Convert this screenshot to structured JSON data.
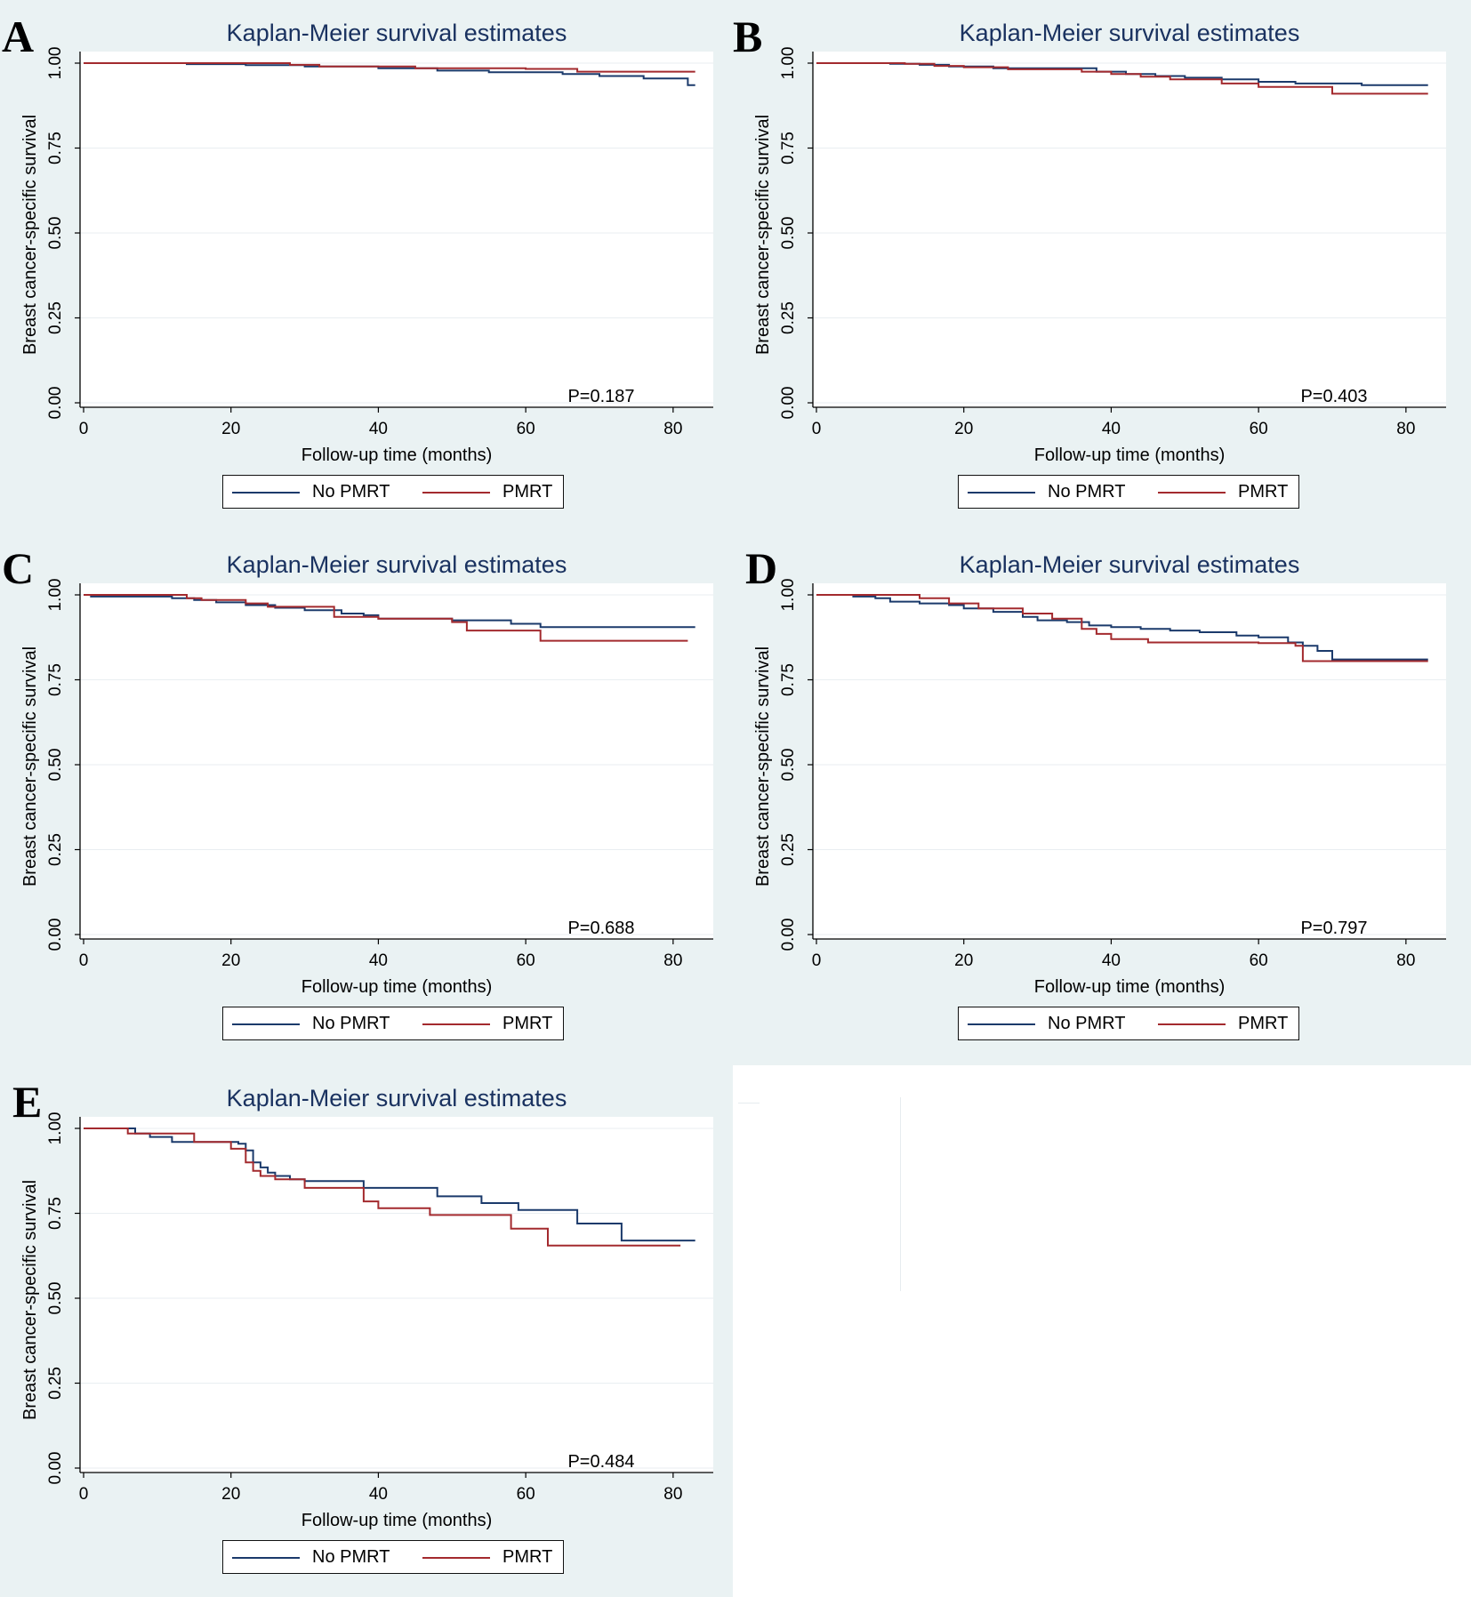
{
  "legend": {
    "series1": "No PMRT",
    "series2": "PMRT"
  },
  "colors": {
    "series1": "#1b3a6b",
    "series2": "#a32a2e",
    "grid": "#ffffff",
    "axis": "#000000"
  },
  "chart_data": [
    {
      "panel": "A",
      "type": "line",
      "title": "Kaplan-Meier survival estimates",
      "xlabel": "Follow-up time (months)",
      "ylabel": "Breast cancer-specific survival",
      "xlim": [
        0,
        84
      ],
      "ylim": [
        0,
        1
      ],
      "xticks": [
        "0",
        "20",
        "40",
        "60",
        "80"
      ],
      "yticks": [
        "0.00",
        "0.25",
        "0.50",
        "0.75",
        "1.00"
      ],
      "annotation": "P=0.187",
      "series": [
        {
          "name": "No PMRT",
          "x": [
            0,
            14,
            22,
            30,
            40,
            48,
            55,
            65,
            70,
            76,
            82,
            83
          ],
          "y": [
            1.0,
            0.997,
            0.994,
            0.99,
            0.985,
            0.978,
            0.973,
            0.968,
            0.962,
            0.955,
            0.935,
            0.935
          ]
        },
        {
          "name": "PMRT",
          "x": [
            0,
            28,
            32,
            45,
            60,
            67,
            83
          ],
          "y": [
            1.0,
            0.995,
            0.99,
            0.985,
            0.983,
            0.975,
            0.975
          ]
        }
      ]
    },
    {
      "panel": "B",
      "type": "line",
      "title": "Kaplan-Meier survival estimates",
      "xlabel": "Follow-up time (months)",
      "ylabel": "Breast cancer-specific survival",
      "xlim": [
        0,
        84
      ],
      "ylim": [
        0,
        1
      ],
      "xticks": [
        "0",
        "20",
        "40",
        "60",
        "80"
      ],
      "yticks": [
        "0.00",
        "0.25",
        "0.50",
        "0.75",
        "1.00"
      ],
      "annotation": "P=0.403",
      "series": [
        {
          "name": "No PMRT",
          "x": [
            0,
            10,
            14,
            18,
            24,
            38,
            42,
            46,
            50,
            55,
            60,
            65,
            74,
            83
          ],
          "y": [
            1.0,
            0.998,
            0.995,
            0.99,
            0.985,
            0.975,
            0.968,
            0.962,
            0.957,
            0.952,
            0.945,
            0.94,
            0.935,
            0.935
          ]
        },
        {
          "name": "PMRT",
          "x": [
            0,
            12,
            16,
            20,
            26,
            36,
            40,
            44,
            48,
            55,
            60,
            70,
            83
          ],
          "y": [
            1.0,
            0.998,
            0.992,
            0.988,
            0.982,
            0.975,
            0.968,
            0.96,
            0.952,
            0.94,
            0.93,
            0.91,
            0.91
          ]
        }
      ]
    },
    {
      "panel": "C",
      "type": "line",
      "title": "Kaplan-Meier survival estimates",
      "xlabel": "Follow-up time (months)",
      "ylabel": "Breast cancer-specific survival",
      "xlim": [
        0,
        84
      ],
      "ylim": [
        0,
        1
      ],
      "xticks": [
        "0",
        "20",
        "40",
        "60",
        "80"
      ],
      "yticks": [
        "0.00",
        "0.25",
        "0.50",
        "0.75",
        "1.00"
      ],
      "annotation": "P=0.688",
      "series": [
        {
          "name": "No PMRT",
          "x": [
            0,
            1,
            12,
            15,
            18,
            22,
            26,
            30,
            35,
            38,
            40,
            50,
            58,
            62,
            83
          ],
          "y": [
            1.0,
            0.995,
            0.99,
            0.985,
            0.978,
            0.97,
            0.962,
            0.955,
            0.945,
            0.94,
            0.93,
            0.925,
            0.915,
            0.905,
            0.905
          ]
        },
        {
          "name": "PMRT",
          "x": [
            0,
            14,
            16,
            22,
            25,
            34,
            40,
            50,
            52,
            62,
            82
          ],
          "y": [
            1.0,
            0.99,
            0.985,
            0.975,
            0.965,
            0.935,
            0.93,
            0.92,
            0.895,
            0.865,
            0.865
          ]
        }
      ]
    },
    {
      "panel": "D",
      "type": "line",
      "title": "Kaplan-Meier survival estimates",
      "xlabel": "Follow-up time (months)",
      "ylabel": "Breast cancer-specific survival",
      "xlim": [
        0,
        84
      ],
      "ylim": [
        0,
        1
      ],
      "xticks": [
        "0",
        "20",
        "40",
        "60",
        "80"
      ],
      "yticks": [
        "0.00",
        "0.25",
        "0.50",
        "0.75",
        "1.00"
      ],
      "annotation": "P=0.797",
      "series": [
        {
          "name": "No PMRT",
          "x": [
            0,
            5,
            8,
            10,
            14,
            18,
            20,
            24,
            28,
            30,
            34,
            37,
            40,
            44,
            48,
            52,
            57,
            60,
            64,
            66,
            68,
            70,
            83
          ],
          "y": [
            1.0,
            0.995,
            0.99,
            0.98,
            0.975,
            0.97,
            0.96,
            0.95,
            0.935,
            0.925,
            0.92,
            0.91,
            0.905,
            0.9,
            0.895,
            0.89,
            0.88,
            0.875,
            0.86,
            0.85,
            0.835,
            0.81,
            0.81
          ]
        },
        {
          "name": "PMRT",
          "x": [
            0,
            14,
            18,
            22,
            28,
            32,
            36,
            38,
            40,
            45,
            60,
            65,
            66,
            83
          ],
          "y": [
            1.0,
            0.99,
            0.975,
            0.96,
            0.945,
            0.93,
            0.9,
            0.885,
            0.87,
            0.86,
            0.858,
            0.85,
            0.805,
            0.805
          ]
        }
      ]
    },
    {
      "panel": "E",
      "type": "line",
      "title": "Kaplan-Meier survival estimates",
      "xlabel": "Follow-up time (months)",
      "ylabel": "Breast cancer-specific survival",
      "xlim": [
        0,
        84
      ],
      "ylim": [
        0,
        1
      ],
      "xticks": [
        "0",
        "20",
        "40",
        "60",
        "80"
      ],
      "yticks": [
        "0.00",
        "0.25",
        "0.50",
        "0.75",
        "1.00"
      ],
      "annotation": "P=0.484",
      "series": [
        {
          "name": "No PMRT",
          "x": [
            0,
            7,
            9,
            12,
            21,
            22,
            23,
            24,
            25,
            26,
            28,
            30,
            33,
            38,
            48,
            54,
            59,
            67,
            73,
            83
          ],
          "y": [
            1.0,
            0.985,
            0.975,
            0.96,
            0.955,
            0.935,
            0.9,
            0.885,
            0.87,
            0.86,
            0.85,
            0.845,
            0.845,
            0.825,
            0.8,
            0.78,
            0.76,
            0.72,
            0.67,
            0.67
          ]
        },
        {
          "name": "PMRT",
          "x": [
            0,
            6,
            15,
            20,
            22,
            23,
            24,
            26,
            30,
            38,
            40,
            47,
            58,
            63,
            81
          ],
          "y": [
            1.0,
            0.985,
            0.96,
            0.94,
            0.9,
            0.875,
            0.86,
            0.85,
            0.825,
            0.785,
            0.765,
            0.745,
            0.705,
            0.655,
            0.655
          ]
        }
      ]
    }
  ]
}
